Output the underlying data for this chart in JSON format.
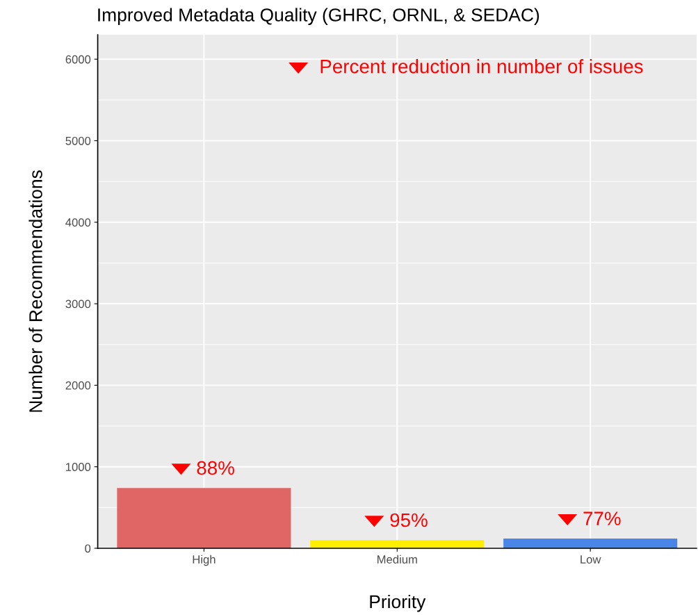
{
  "chart_data": {
    "type": "bar",
    "title": "Improved Metadata Quality (GHRC, ORNL, & SEDAC)",
    "xlabel": "Priority",
    "ylabel": "Number of Recommendations",
    "categories": [
      "High",
      "Medium",
      "Low"
    ],
    "values": [
      740,
      100,
      120
    ],
    "colors": [
      "#e06666",
      "#ffee00",
      "#4a86e8"
    ],
    "ylim": [
      0,
      6300
    ],
    "yticks": [
      0,
      1000,
      2000,
      3000,
      4000,
      5000,
      6000
    ],
    "grid": true,
    "annotations": [
      "88%",
      "95%",
      "77%",
      "Percent reduction in number of issues"
    ]
  }
}
